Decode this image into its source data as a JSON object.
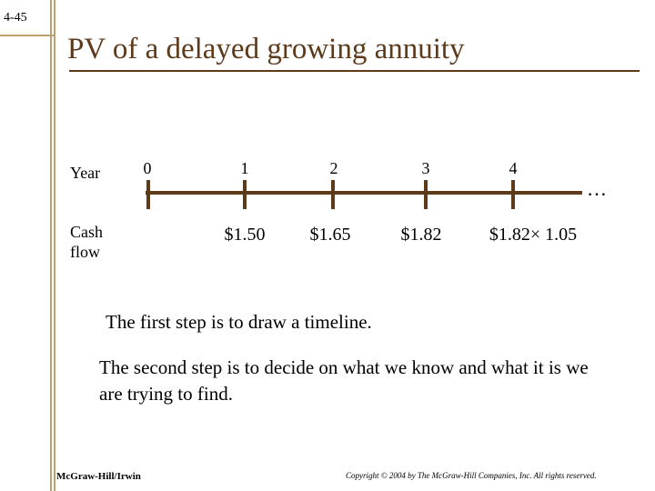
{
  "slide": {
    "number": "4-45",
    "title": "PV of a delayed growing annuity"
  },
  "timeline": {
    "year_label": "Year",
    "cashflow_label": "Cash flow",
    "years": [
      "0",
      "1",
      "2",
      "3",
      "4"
    ],
    "cashflows": [
      "",
      "$1.50",
      "$1.65",
      "$1.82",
      "$1.82× 1.05"
    ],
    "continuation": "…"
  },
  "body": {
    "step1": "The first step is to draw a timeline.",
    "step2": "The second step is to decide on what we know and what it is we are trying to find."
  },
  "footer": {
    "publisher": "McGraw-Hill/Irwin",
    "copyright": "Copyright © 2004 by The McGraw-Hill Companies, Inc.  All rights reserved."
  },
  "colors": {
    "title": "#5c3a1a",
    "timeline": "#5c3a1a",
    "border": "#b9a06c"
  }
}
